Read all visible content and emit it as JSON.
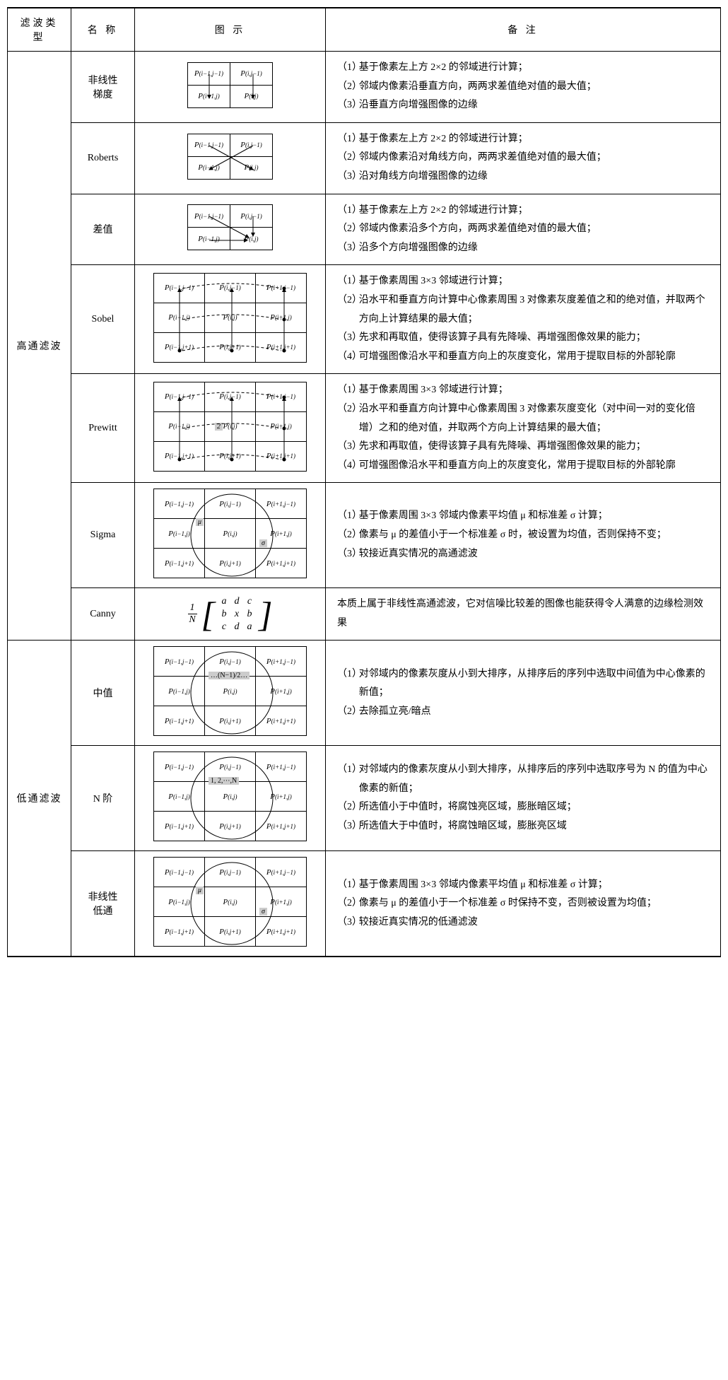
{
  "headers": {
    "type": "滤波类型",
    "name": "名  称",
    "diagram": "图    示",
    "remark": "备    注"
  },
  "groups": [
    {
      "groupName": "高通滤波",
      "rows": [
        {
          "name": "非线性\n梯度",
          "diagram": {
            "kind": "grid2",
            "overlay": "vlines"
          },
          "remarks": [
            "基于像素左上方 2×2 的邻域进行计算；",
            "邻域内像素沿垂直方向，两两求差值绝对值的最大值；",
            "沿垂直方向增强图像的边缘"
          ]
        },
        {
          "name": "Roberts",
          "diagram": {
            "kind": "grid2",
            "overlay": "xcross"
          },
          "remarks": [
            "基于像素左上方 2×2 的邻域进行计算；",
            "邻域内像素沿对角线方向，两两求差值绝对值的最大值；",
            "沿对角线方向增强图像的边缘"
          ]
        },
        {
          "name": "差值",
          "diagram": {
            "kind": "grid2",
            "overlay": "converge"
          },
          "remarks": [
            "基于像素左上方 2×2 的邻域进行计算；",
            "邻域内像素沿多个方向，两两求差值绝对值的最大值；",
            "沿多个方向增强图像的边缘"
          ]
        },
        {
          "name": "Sobel",
          "diagram": {
            "kind": "grid3",
            "overlay": "sobel"
          },
          "remarks": [
            "基于像素周围 3×3 邻域进行计算；",
            "沿水平和垂直方向计算中心像素周围 3 对像素灰度差值之和的绝对值，并取两个方向上计算结果的最大值；",
            "先求和再取值，使得该算子具有先降噪、再增强图像效果的能力；",
            "可增强图像沿水平和垂直方向上的灰度变化，常用于提取目标的外部轮廓"
          ]
        },
        {
          "name": "Prewitt",
          "diagram": {
            "kind": "grid3",
            "overlay": "prewitt"
          },
          "remarks": [
            "基于像素周围 3×3 邻域进行计算；",
            "沿水平和垂直方向计算中心像素周围 3 对像素灰度变化（对中间一对的变化倍增）之和的绝对值，并取两个方向上计算结果的最大值；",
            "先求和再取值，使得该算子具有先降噪、再增强图像效果的能力；",
            "可增强图像沿水平和垂直方向上的灰度变化，常用于提取目标的外部轮廓"
          ]
        },
        {
          "name": "Sigma",
          "diagram": {
            "kind": "grid3",
            "overlay": "circle",
            "labels": {
              "mu": true,
              "sigma": true
            }
          },
          "remarks": [
            "基于像素周围 3×3 邻域内像素平均值 μ 和标准差 σ 计算；",
            "像素与 μ 的差值小于一个标准差 σ 时，被设置为均值，否则保持不变；",
            "较接近真实情况的高通滤波"
          ]
        },
        {
          "name": "Canny",
          "diagram": {
            "kind": "matrix"
          },
          "remark_single": "本质上属于非线性高通滤波，它对信噪比较差的图像也能获得令人满意的边缘检测效果"
        }
      ]
    },
    {
      "groupName": "低通滤波",
      "rows": [
        {
          "name": "中值",
          "diagram": {
            "kind": "grid3",
            "overlay": "circle",
            "banner": "…(N−1)/2…"
          },
          "remarks": [
            "对邻域内的像素灰度从小到大排序，从排序后的序列中选取中间值为中心像素的新值；",
            "去除孤立亮/暗点"
          ]
        },
        {
          "name": "N 阶",
          "diagram": {
            "kind": "grid3",
            "overlay": "circle",
            "banner": "1, 2,⋯,N"
          },
          "remarks": [
            "对邻域内的像素灰度从小到大排序，从排序后的序列中选取序号为 N 的值为中心像素的新值；",
            "所选值小于中值时，将腐蚀亮区域，膨胀暗区域；",
            "所选值大于中值时，将腐蚀暗区域，膨胀亮区域"
          ]
        },
        {
          "name": "非线性\n低通",
          "diagram": {
            "kind": "grid3",
            "overlay": "circle",
            "labels": {
              "mu": true,
              "sigma": true
            }
          },
          "remarks": [
            "基于像素周围 3×3 邻域内像素平均值 μ 和标准差 σ 计算；",
            "像素与 μ 的差值小于一个标准差 σ 时保持不变，否则被设置为均值；",
            "较接近真实情况的低通滤波"
          ]
        }
      ]
    }
  ],
  "grid2_labels": [
    [
      "P(i−1,j−1)",
      "P(i,j−1)"
    ],
    [
      "P(i−1,j)",
      "P(i,j)"
    ]
  ],
  "grid3_labels": [
    [
      "P(i−1,j−1)",
      "P(i,j−1)",
      "P(i+1,j−1)"
    ],
    [
      "P(i−1,j)",
      "P(i,j)",
      "P(i+1,j)"
    ],
    [
      "P(i−1,j+1)",
      "P(i,j+1)",
      "P(i+1,j+1)"
    ]
  ],
  "matrix": {
    "frac_num": "1",
    "frac_den": "N",
    "rows": [
      [
        "a",
        "d",
        "c"
      ],
      [
        "b",
        "x",
        "b"
      ],
      [
        "c",
        "d",
        "a"
      ]
    ]
  },
  "prewitt_center": "2",
  "style": {
    "border_color": "#000000",
    "banner_bg": "#c0c0c0",
    "body_bg": "#ffffff",
    "font_body": "SimSun",
    "font_math": "Times New Roman",
    "fontsize_body": 14,
    "fontsize_cell": 11
  }
}
